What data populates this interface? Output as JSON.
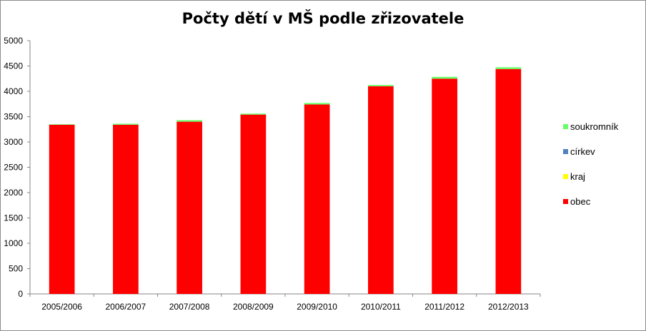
{
  "chart_data": {
    "type": "bar",
    "stacked": true,
    "title": "Počty dětí v MŠ podle zřizovatele",
    "categories": [
      "2005/2006",
      "2006/2007",
      "2007/2008",
      "2008/2009",
      "2009/2010",
      "2010/2011",
      "2011/2012",
      "2012/2013"
    ],
    "ylim": [
      0,
      5000
    ],
    "yticks": [
      0,
      500,
      1000,
      1500,
      2000,
      2500,
      3000,
      3500,
      4000,
      4500,
      5000
    ],
    "grid": false,
    "legend_position": "right",
    "series": [
      {
        "name": "obec",
        "color": "#ff0000",
        "values": [
          3340,
          3340,
          3400,
          3540,
          3740,
          4100,
          4250,
          4440
        ]
      },
      {
        "name": "kraj",
        "color": "#ffff00",
        "values": [
          0,
          0,
          0,
          0,
          0,
          0,
          0,
          0
        ]
      },
      {
        "name": "církev",
        "color": "#4f81bd",
        "values": [
          0,
          0,
          0,
          0,
          0,
          0,
          0,
          0
        ]
      },
      {
        "name": "soukromník",
        "color": "#66ff66",
        "values": [
          10,
          20,
          30,
          20,
          30,
          25,
          35,
          35
        ]
      }
    ]
  }
}
